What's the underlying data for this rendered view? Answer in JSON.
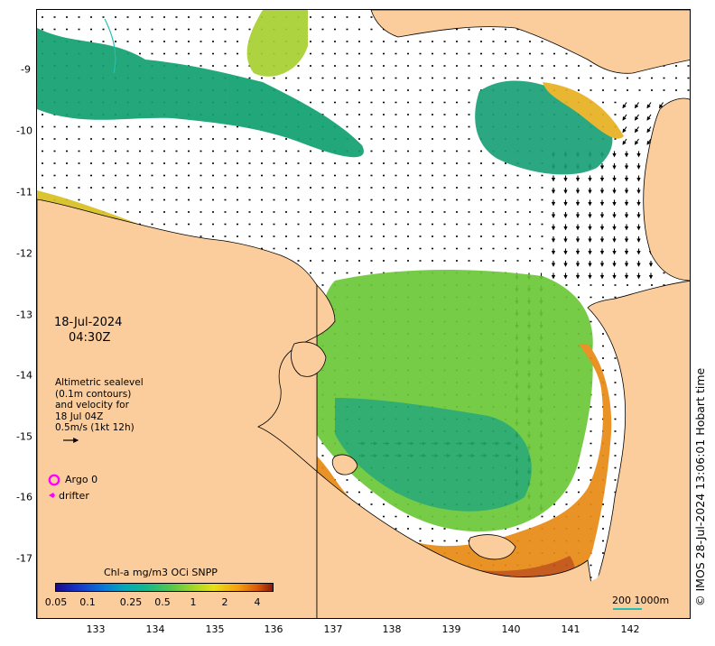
{
  "date_line1": "18-Jul-2024",
  "date_line2": "04:30Z",
  "altimetry": {
    "line1": "Altimetric sealevel",
    "line2": "(0.1m contours)",
    "line3": "and velocity for",
    "line4": "18 Jul 04Z",
    "line5": "0.5m/s (1kt 12h)"
  },
  "legend": {
    "argo_label": "Argo 0",
    "drifter_label": "drifter",
    "argo_color": "#ff00ff",
    "drifter_color": "#ff00ff"
  },
  "axes": {
    "x_ticks": [
      "133",
      "134",
      "135",
      "136",
      "137",
      "138",
      "139",
      "140",
      "141",
      "142"
    ],
    "y_ticks": [
      "-9",
      "-10",
      "-11",
      "-12",
      "-13",
      "-14",
      "-15",
      "-16",
      "-17"
    ]
  },
  "colorbar": {
    "title": "Chl-a mg/m3 OCi SNPP",
    "ticks": [
      "0.05",
      "0.1",
      "0.25",
      "0.5",
      "1",
      "2",
      "4"
    ]
  },
  "scalebar": {
    "label": "200  1000m",
    "color": "#26c0b0"
  },
  "credit": "© IMOS 28-Jul-2024 13:06:01 Hobart time",
  "colors": {
    "land": "#fbcd9c",
    "coastline": "#000000",
    "chl_low": "#0b9a8c",
    "chl_mid": "#4cc848",
    "chl_high": "#e8a010",
    "chl_coastal": "#c05010"
  }
}
